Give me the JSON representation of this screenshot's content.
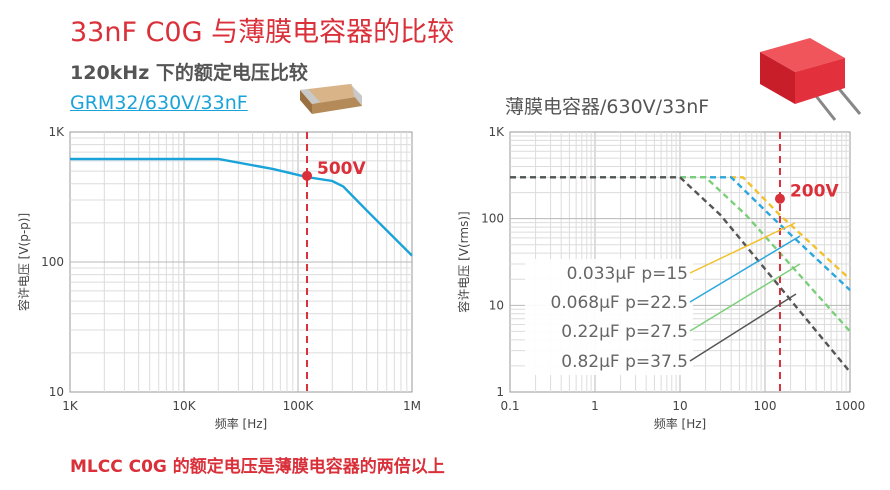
{
  "header": {
    "title": "33nF C0G 与薄膜电容器的比较",
    "subtitle": "120kHz 下的额定电压比较",
    "left_part": "GRM32/630V/33nF",
    "right_part": "薄膜电容器/630V/33nF"
  },
  "footer": {
    "text": "MLCC C0G 的额定电压是薄膜电容器的两倍以上"
  },
  "colors": {
    "red": "#d9303a",
    "cyan": "#1aa3d9",
    "yellow": "#f2c12e",
    "blue": "#2aa7de",
    "green": "#7ccf7a",
    "gray": "#555555"
  },
  "chart_data": [
    {
      "type": "line",
      "xscale": "log",
      "yscale": "log",
      "xlabel": "频率 [Hz]",
      "ylabel": "容许电压 [V(p-p)]",
      "xlim": [
        1000,
        1000000
      ],
      "ylim": [
        10,
        1000
      ],
      "x_ticks": [
        "1K",
        "10K",
        "100K",
        "1M"
      ],
      "y_ticks": [
        "10",
        "100",
        "1K"
      ],
      "series": [
        {
          "color": "#1aa3d9",
          "x": [
            1000,
            20000,
            60000,
            120000,
            200000,
            250000,
            400000,
            1000000
          ],
          "y": [
            620,
            620,
            520,
            450,
            420,
            380,
            250,
            112
          ]
        }
      ],
      "marker": {
        "x": 120000,
        "y": 460,
        "label": "500V"
      }
    },
    {
      "type": "line",
      "xscale": "log",
      "yscale": "log",
      "xlabel": "频率 [Hz]",
      "ylabel": "容许电压 [V(rms)]",
      "xlim": [
        0.1,
        1000
      ],
      "ylim": [
        1,
        1000
      ],
      "x_ticks": [
        "0.1",
        "1",
        "10",
        "100",
        "1000"
      ],
      "y_ticks": [
        "1",
        "10",
        "100",
        "1K"
      ],
      "series": [
        {
          "name": "0.033μF p=15",
          "color": "#f2c12e",
          "x": [
            0.1,
            55,
            150,
            1000
          ],
          "y": [
            300,
            300,
            110,
            20
          ]
        },
        {
          "name": "0.068μF p=22.5",
          "color": "#2aa7de",
          "x": [
            0.1,
            40,
            120,
            1000
          ],
          "y": [
            300,
            300,
            105,
            15
          ]
        },
        {
          "name": "0.22μF p=27.5",
          "color": "#7ccf7a",
          "x": [
            0.1,
            20,
            60,
            1000
          ],
          "y": [
            300,
            300,
            110,
            5
          ]
        },
        {
          "name": "0.82μF p=37.5",
          "color": "#555555",
          "x": [
            0.1,
            10,
            30,
            1000
          ],
          "y": [
            300,
            300,
            110,
            1.7
          ]
        }
      ],
      "marker": {
        "x": 150,
        "y": 170,
        "label": "200V"
      }
    }
  ]
}
